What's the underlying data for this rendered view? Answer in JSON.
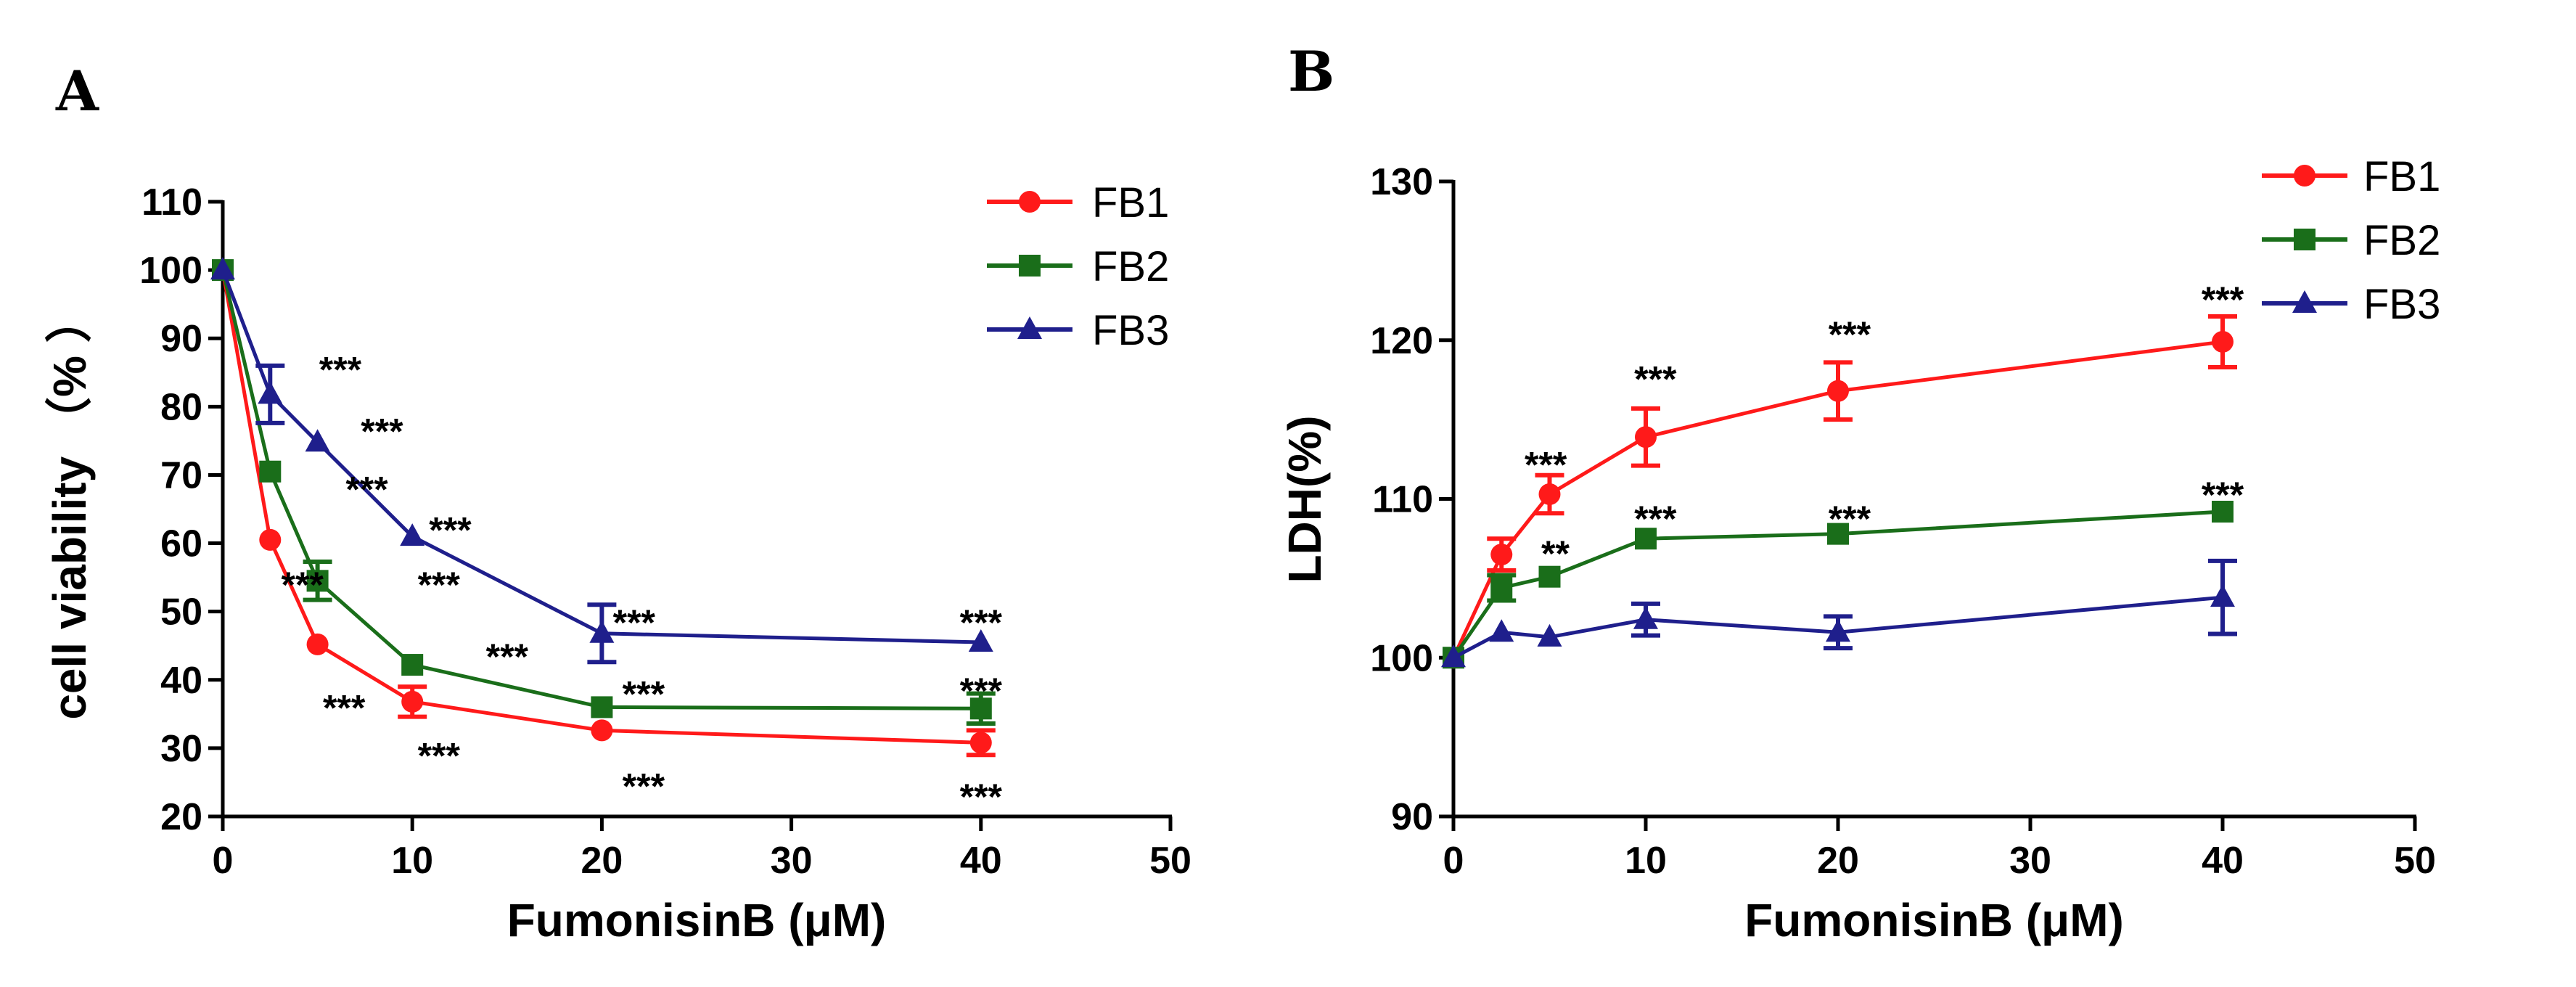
{
  "chart_data": [
    {
      "type": "line",
      "panel": "A",
      "xlabel": "FumonisinB (μM)",
      "ylabel": "cell viability （% ）",
      "xlim": [
        0,
        50
      ],
      "ylim": [
        20,
        110
      ],
      "xticks": [
        0,
        10,
        20,
        30,
        40,
        50
      ],
      "yticks": [
        20,
        30,
        40,
        50,
        60,
        70,
        80,
        90,
        100,
        110
      ],
      "legend_position": "top-right",
      "series": [
        {
          "name": "FB1",
          "color": "#ff1a1a",
          "marker": "circle",
          "x": [
            0,
            2.5,
            5,
            10,
            20,
            40
          ],
          "y": [
            100,
            60.5,
            45.2,
            36.8,
            32.6,
            30.8
          ],
          "err": [
            0,
            0,
            0,
            2.2,
            0,
            1.8
          ]
        },
        {
          "name": "FB2",
          "color": "#1a6e1a",
          "marker": "square",
          "x": [
            0,
            2.5,
            5,
            10,
            20,
            40
          ],
          "y": [
            100,
            70.5,
            54.5,
            42.2,
            36.0,
            35.8
          ],
          "err": [
            0,
            0,
            2.8,
            0,
            0,
            2.2
          ]
        },
        {
          "name": "FB3",
          "color": "#1f1f8c",
          "marker": "triangle",
          "x": [
            0,
            2.5,
            5,
            10,
            20,
            40
          ],
          "y": [
            100,
            81.8,
            74.8,
            61.0,
            46.8,
            45.5
          ],
          "err": [
            0,
            4.2,
            0,
            0,
            4.2,
            0
          ]
        }
      ],
      "annotations": [
        {
          "text": "***",
          "x": 6.2,
          "y": 85.5
        },
        {
          "text": "***",
          "x": 8.4,
          "y": 76.5
        },
        {
          "text": "***",
          "x": 7.6,
          "y": 68.0
        },
        {
          "text": "***",
          "x": 12.0,
          "y": 62.0
        },
        {
          "text": "***",
          "x": 4.2,
          "y": 54.0
        },
        {
          "text": "***",
          "x": 11.4,
          "y": 54.0
        },
        {
          "text": "***",
          "x": 15.0,
          "y": 43.5
        },
        {
          "text": "***",
          "x": 6.4,
          "y": 36.0
        },
        {
          "text": "***",
          "x": 11.4,
          "y": 29.0
        },
        {
          "text": "***",
          "x": 21.7,
          "y": 48.5
        },
        {
          "text": "***",
          "x": 22.2,
          "y": 38.0
        },
        {
          "text": "***",
          "x": 22.2,
          "y": 24.5
        },
        {
          "text": "***",
          "x": 40.0,
          "y": 48.5
        },
        {
          "text": "***",
          "x": 40.0,
          "y": 38.5
        },
        {
          "text": "***",
          "x": 40.0,
          "y": 23.0
        }
      ]
    },
    {
      "type": "line",
      "panel": "B",
      "xlabel": "FumonisinB (μM)",
      "ylabel": "LDH(%)",
      "xlim": [
        0,
        50
      ],
      "ylim": [
        90,
        130
      ],
      "xticks": [
        0,
        10,
        20,
        30,
        40,
        50
      ],
      "yticks": [
        90,
        100,
        110,
        120,
        130
      ],
      "legend_position": "top-right",
      "series": [
        {
          "name": "FB1",
          "color": "#ff1a1a",
          "marker": "circle",
          "x": [
            0,
            2.5,
            5,
            10,
            20,
            40
          ],
          "y": [
            100,
            106.5,
            110.3,
            113.9,
            116.8,
            119.9
          ],
          "err": [
            0,
            1.0,
            1.2,
            1.8,
            1.8,
            1.6
          ]
        },
        {
          "name": "FB2",
          "color": "#1a6e1a",
          "marker": "square",
          "x": [
            0,
            2.5,
            5,
            10,
            20,
            40
          ],
          "y": [
            100,
            104.4,
            105.1,
            107.5,
            107.8,
            109.2
          ],
          "err": [
            0,
            0.8,
            0,
            0,
            0,
            0
          ]
        },
        {
          "name": "FB3",
          "color": "#1f1f8c",
          "marker": "triangle",
          "x": [
            0,
            2.5,
            5,
            10,
            20,
            40
          ],
          "y": [
            100,
            101.6,
            101.3,
            102.4,
            101.6,
            103.8
          ],
          "err": [
            0,
            0,
            0,
            1.0,
            1.0,
            2.3
          ]
        }
      ],
      "annotations": [
        {
          "text": "***",
          "x": 4.8,
          "y": 112.2
        },
        {
          "text": "**",
          "x": 5.3,
          "y": 106.6
        },
        {
          "text": "***",
          "x": 10.5,
          "y": 117.6
        },
        {
          "text": "***",
          "x": 10.5,
          "y": 108.8
        },
        {
          "text": "***",
          "x": 20.6,
          "y": 120.4
        },
        {
          "text": "***",
          "x": 20.6,
          "y": 108.8
        },
        {
          "text": "***",
          "x": 40.0,
          "y": 122.6
        },
        {
          "text": "***",
          "x": 40.0,
          "y": 110.3
        }
      ]
    }
  ]
}
